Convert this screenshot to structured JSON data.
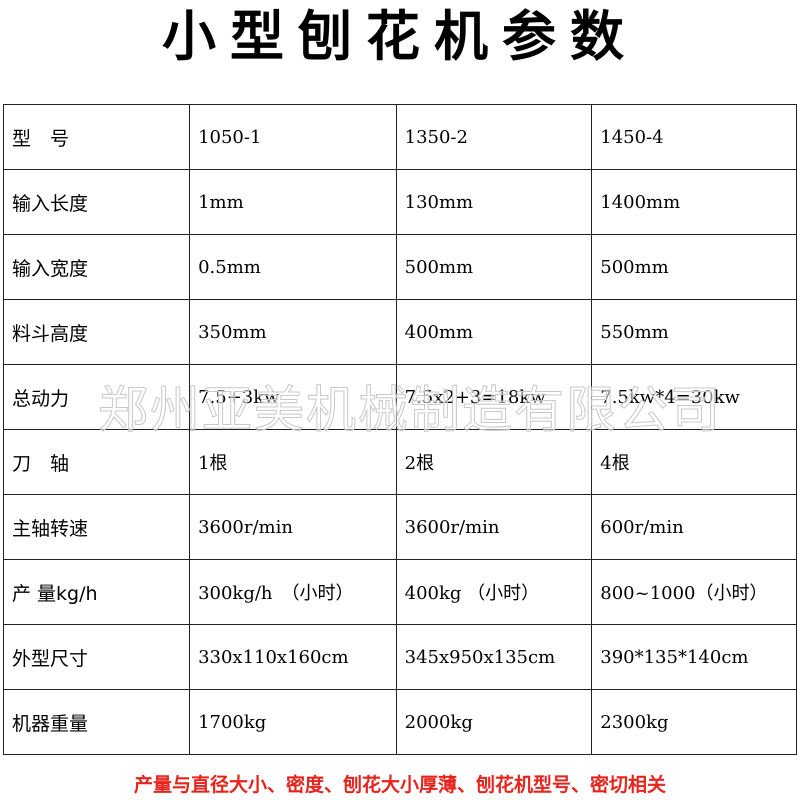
{
  "title": "小型刨花机参数",
  "table": {
    "rows": [
      {
        "label": "型　号",
        "values": [
          "1050-1",
          "1350-2",
          "1450-4"
        ]
      },
      {
        "label": "输入长度",
        "values": [
          "1mm",
          "130mm",
          "1400mm"
        ]
      },
      {
        "label": "输入宽度",
        "values": [
          "0.5mm",
          "500mm",
          "500mm"
        ]
      },
      {
        "label": "料斗高度",
        "values": [
          "350mm",
          "400mm",
          "550mm"
        ]
      },
      {
        "label": "总动力",
        "values": [
          "7.5+3kw",
          "7.5x2+3=18kw",
          "7.5kw*4=30kw"
        ]
      },
      {
        "label": "刀　轴",
        "values": [
          "1根",
          "2根",
          "4根"
        ]
      },
      {
        "label": "主轴转速",
        "values": [
          "3600r/min",
          "3600r/min",
          "600r/min"
        ]
      },
      {
        "label": "产 量kg/h",
        "values": [
          "300kg/h　（小时）",
          "400kg （小时）",
          "800~1000（小时）"
        ]
      },
      {
        "label": "外型尺寸",
        "values": [
          "330x110x160cm",
          "345x950x135cm",
          "390*135*140cm"
        ]
      },
      {
        "label": "机器重量",
        "values": [
          "1700kg",
          "2000kg",
          "2300kg"
        ]
      }
    ]
  },
  "watermark": "郑州亚美机械制造有限公司",
  "note": "产量与直径大小、密度、刨花大小厚薄、刨花机型号、密切相关",
  "colors": {
    "note": "#e8231c"
  }
}
